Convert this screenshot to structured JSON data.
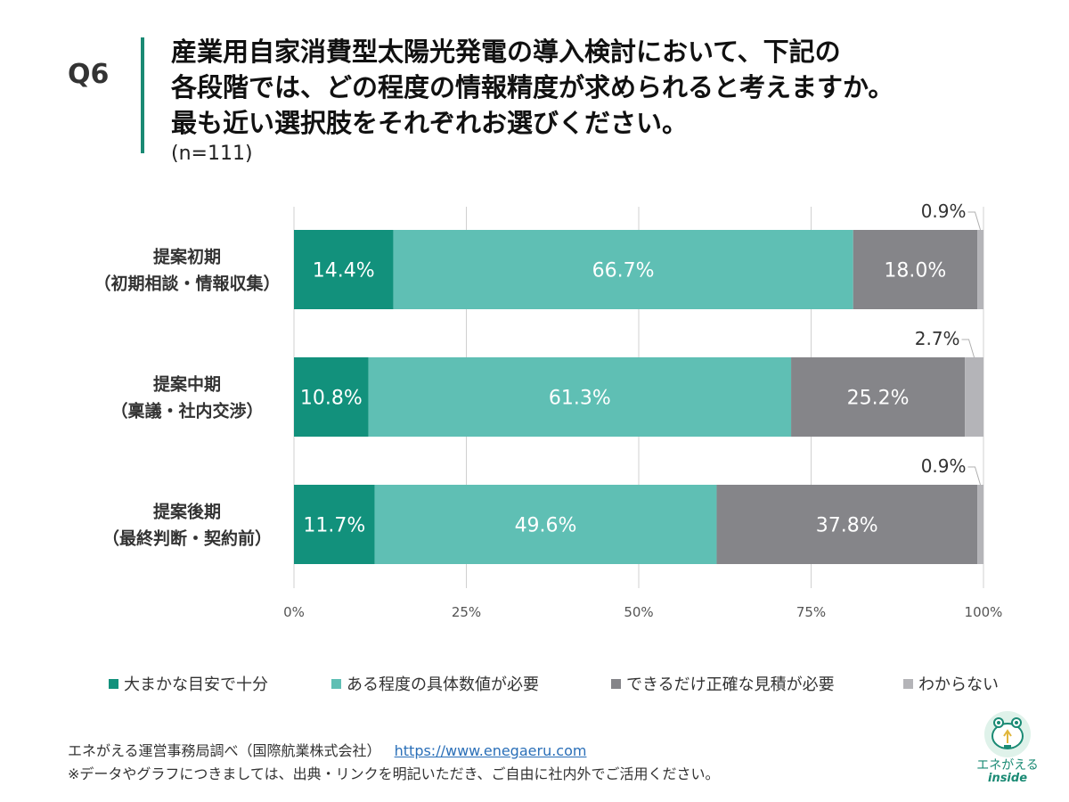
{
  "header": {
    "question_no": "Q6",
    "question_lines": [
      "産業用自家消費型太陽光発電の導入検討において、下記の",
      "各段階では、どの程度の情報精度が求められると考えますか。",
      "最も近い選択肢をそれぞれお選びください。"
    ],
    "sample_size": "(n=111)"
  },
  "chart_data": {
    "type": "bar",
    "orientation": "horizontal",
    "stacked": "percent",
    "categories": [
      [
        "提案初期",
        "（初期相談・情報収集）"
      ],
      [
        "提案中期",
        "（稟議・社内交渉）"
      ],
      [
        "提案後期",
        "（最終判断・契約前）"
      ]
    ],
    "series": [
      {
        "name": "大まかな目安で十分",
        "color": "#12917c",
        "values": [
          14.4,
          10.8,
          11.7
        ]
      },
      {
        "name": "ある程度の具体数値が必要",
        "color": "#5fbfb4",
        "values": [
          66.7,
          61.3,
          49.6
        ]
      },
      {
        "name": "できるだけ正確な見積が必要",
        "color": "#858589",
        "values": [
          18.0,
          25.2,
          37.8
        ]
      },
      {
        "name": "わからない",
        "color": "#b4b4b8",
        "values": [
          0.9,
          2.7,
          0.9
        ]
      }
    ],
    "data_labels": [
      [
        "14.4%",
        "66.7%",
        "18.0%",
        "0.9%"
      ],
      [
        "10.8%",
        "61.3%",
        "25.2%",
        "2.7%"
      ],
      [
        "11.7%",
        "49.6%",
        "37.8%",
        "0.9%"
      ]
    ],
    "x_ticks": [
      "0%",
      "25%",
      "50%",
      "75%",
      "100%"
    ],
    "xlim": [
      0,
      100
    ],
    "grid": "vertical gridlines",
    "legend": "bottom"
  },
  "footer": {
    "source": "エネがえる運営事務局調べ（国際航業株式会社）",
    "link": "https://www.enegaeru.com",
    "note": "※データやグラフにつきましては、出典・リンクを明記いただき、ご自由に社内外でご活用ください。"
  },
  "logo": {
    "name": "エネがえる",
    "sub": "inside"
  }
}
